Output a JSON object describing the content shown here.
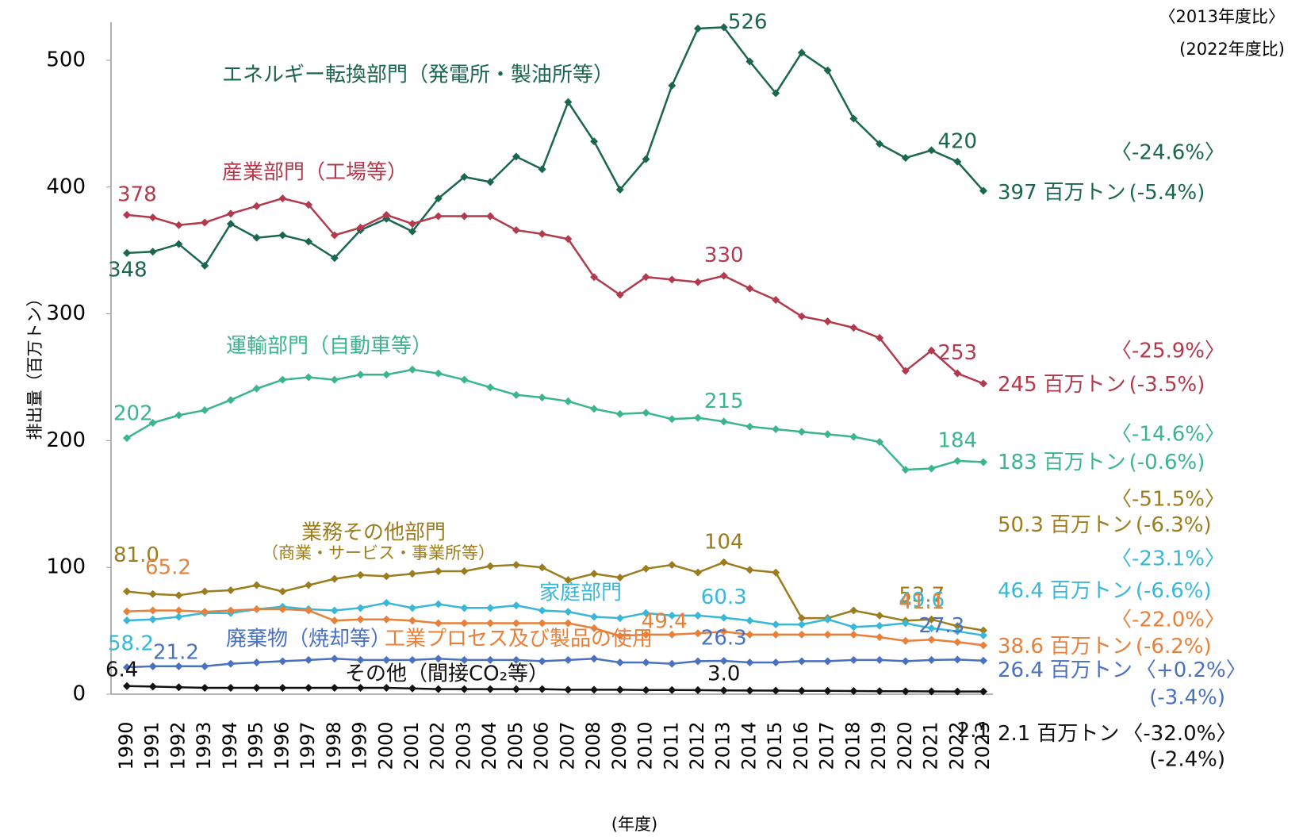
{
  "chart_data": {
    "type": "line",
    "y_label": "排出量（百万トン）",
    "x_label": "(年度)",
    "compare_headers": [
      "〈2013年度比〉",
      "(2022年度比)"
    ],
    "end_unit": "百万トン",
    "grid": false,
    "ylim": [
      0,
      530
    ],
    "yticks": [
      0,
      100,
      200,
      300,
      400,
      500
    ],
    "categories": [
      "1990",
      "1991",
      "1992",
      "1993",
      "1994",
      "1995",
      "1996",
      "1997",
      "1998",
      "1999",
      "2000",
      "2001",
      "2002",
      "2003",
      "2004",
      "2005",
      "2006",
      "2007",
      "2008",
      "2009",
      "2010",
      "2011",
      "2012",
      "2013",
      "2014",
      "2015",
      "2016",
      "2017",
      "2018",
      "2019",
      "2020",
      "2021",
      "2022",
      "2023"
    ],
    "series": [
      {
        "name": "エネルギー転換部門（発電所・製油所等）",
        "color": "#1b6650",
        "values": [
          348,
          349,
          355,
          338,
          371,
          360,
          362,
          357,
          344,
          366,
          375,
          365,
          391,
          408,
          404,
          424,
          414,
          467,
          436,
          398,
          422,
          480,
          525,
          526,
          499,
          474,
          506,
          492,
          454,
          434,
          423,
          429,
          420,
          397
        ],
        "value_labels": [
          "348",
          null,
          null,
          null,
          null,
          null,
          null,
          null,
          null,
          null,
          null,
          null,
          null,
          null,
          null,
          null,
          null,
          null,
          null,
          null,
          null,
          null,
          null,
          "526",
          null,
          null,
          null,
          null,
          null,
          null,
          null,
          null,
          "420",
          "397"
        ],
        "change_2013": "〈-24.6%〉",
        "change_2022": "(-5.4%)"
      },
      {
        "name": "産業部門（工場等）",
        "color": "#b23a4c",
        "values": [
          378,
          376,
          370,
          372,
          379,
          385,
          391,
          386,
          362,
          368,
          378,
          371,
          377,
          377,
          377,
          366,
          363,
          359,
          329,
          315,
          329,
          327,
          325,
          330,
          320,
          311,
          298,
          294,
          289,
          281,
          255,
          271,
          253,
          245
        ],
        "value_labels": [
          "378",
          null,
          null,
          null,
          null,
          null,
          null,
          null,
          null,
          null,
          null,
          null,
          null,
          null,
          null,
          null,
          null,
          null,
          null,
          null,
          null,
          null,
          null,
          "330",
          null,
          null,
          null,
          null,
          null,
          null,
          null,
          null,
          "253",
          "245"
        ],
        "change_2013": "〈-25.9%〉",
        "change_2022": "(-3.5%)"
      },
      {
        "name": "運輸部門（自動車等）",
        "color": "#3bb58e",
        "values": [
          202,
          214,
          220,
          224,
          232,
          241,
          248,
          250,
          248,
          252,
          252,
          256,
          253,
          248,
          242,
          236,
          234,
          231,
          225,
          221,
          222,
          217,
          218,
          215,
          211,
          209,
          207,
          205,
          203,
          199,
          177,
          178,
          184,
          183
        ],
        "value_labels": [
          "202",
          null,
          null,
          null,
          null,
          null,
          null,
          null,
          null,
          null,
          null,
          null,
          null,
          null,
          null,
          null,
          null,
          null,
          null,
          null,
          null,
          null,
          null,
          "215",
          null,
          null,
          null,
          null,
          null,
          null,
          null,
          null,
          "184",
          "183"
        ],
        "change_2013": "〈-14.6%〉",
        "change_2022": "(-0.6%)"
      },
      {
        "name": "業務その他部門",
        "name_note": "（商業・サービス・事業所等）",
        "color": "#9c7c1c",
        "values": [
          81.0,
          79,
          78,
          81,
          82,
          86,
          81,
          86,
          91,
          94,
          93,
          95,
          97,
          97,
          101,
          102,
          100,
          90,
          95,
          92,
          99,
          102,
          96,
          104,
          98,
          96,
          60,
          60,
          66,
          62,
          58,
          59,
          53.7,
          50.3
        ],
        "value_labels": [
          "81.0",
          null,
          null,
          null,
          null,
          null,
          null,
          null,
          null,
          null,
          null,
          null,
          null,
          null,
          null,
          null,
          null,
          null,
          null,
          null,
          null,
          null,
          null,
          "104",
          null,
          null,
          null,
          null,
          null,
          null,
          null,
          null,
          "53.7",
          "50.3"
        ],
        "change_2013": "〈-51.5%〉",
        "change_2022": "(-6.3%)"
      },
      {
        "name": "家庭部門",
        "color": "#38b8d6",
        "values": [
          58.2,
          59,
          61,
          64,
          64,
          67,
          69,
          67,
          66,
          68,
          72,
          68,
          71,
          68,
          68,
          70,
          66,
          65,
          61,
          60,
          64,
          62,
          62,
          60.3,
          58,
          55,
          55,
          59,
          53,
          54,
          56,
          52,
          49.6,
          46.4
        ],
        "value_labels": [
          "58.2",
          null,
          null,
          null,
          null,
          null,
          null,
          null,
          null,
          null,
          null,
          null,
          null,
          null,
          null,
          null,
          null,
          null,
          null,
          null,
          null,
          null,
          null,
          "60.3",
          null,
          null,
          null,
          null,
          null,
          null,
          null,
          null,
          "49.6",
          "46.4"
        ],
        "change_2013": "〈-23.1%〉",
        "change_2022": "(-6.6%)"
      },
      {
        "name": "工業プロセス及び製品の使用",
        "color": "#e8803a",
        "values": [
          65.2,
          66,
          66,
          65,
          66,
          67,
          67,
          66,
          58,
          59,
          59,
          58,
          56,
          56,
          56,
          56,
          56,
          56,
          52,
          46,
          47,
          47,
          48,
          49.4,
          47,
          47,
          47,
          47,
          47,
          45,
          42,
          43,
          41.1,
          38.6
        ],
        "value_labels": [
          "65.2",
          null,
          null,
          null,
          null,
          null,
          null,
          null,
          null,
          null,
          null,
          null,
          null,
          null,
          null,
          null,
          null,
          null,
          null,
          null,
          null,
          null,
          null,
          "49.4",
          null,
          null,
          null,
          null,
          null,
          null,
          null,
          null,
          "41.1",
          "38.6"
        ],
        "change_2013": "〈-22.0%〉",
        "change_2022": "(-6.2%)"
      },
      {
        "name": "廃棄物（焼却等）",
        "color": "#4a70c0",
        "values": [
          21.2,
          22,
          22,
          22,
          24,
          25,
          26,
          27,
          28,
          27,
          27,
          27,
          28,
          27,
          27,
          27,
          26,
          27,
          28,
          25,
          25,
          24,
          26,
          26.3,
          25,
          25,
          26,
          26,
          27,
          27,
          26,
          27,
          27.3,
          26.4
        ],
        "value_labels": [
          "21.2",
          null,
          null,
          null,
          null,
          null,
          null,
          null,
          null,
          null,
          null,
          null,
          null,
          null,
          null,
          null,
          null,
          null,
          null,
          null,
          null,
          null,
          null,
          "26.3",
          null,
          null,
          null,
          null,
          null,
          null,
          null,
          null,
          "27.3",
          "26.4"
        ],
        "change_2013": "〈+0.2%〉",
        "change_2022": "(-3.4%)"
      },
      {
        "name": "その他（間接CO₂等）",
        "color": "#111111",
        "values": [
          6.4,
          6.0,
          5.5,
          5,
          5,
          5,
          5,
          5,
          5,
          5,
          5,
          4.5,
          4,
          4,
          4,
          4,
          4,
          3.5,
          3.5,
          3.5,
          3.3,
          3.3,
          3.2,
          3.0,
          2.9,
          2.8,
          2.7,
          2.6,
          2.5,
          2.4,
          2.3,
          2.2,
          2.1,
          2.1
        ],
        "value_labels": [
          "6.4",
          null,
          null,
          null,
          null,
          null,
          null,
          null,
          null,
          null,
          null,
          null,
          null,
          null,
          null,
          null,
          null,
          null,
          null,
          null,
          null,
          null,
          null,
          "3.0",
          null,
          null,
          null,
          null,
          null,
          null,
          null,
          null,
          "2.1",
          "2.1"
        ],
        "change_2013": "〈-32.0%〉",
        "change_2022": "(-2.4%)"
      }
    ]
  }
}
